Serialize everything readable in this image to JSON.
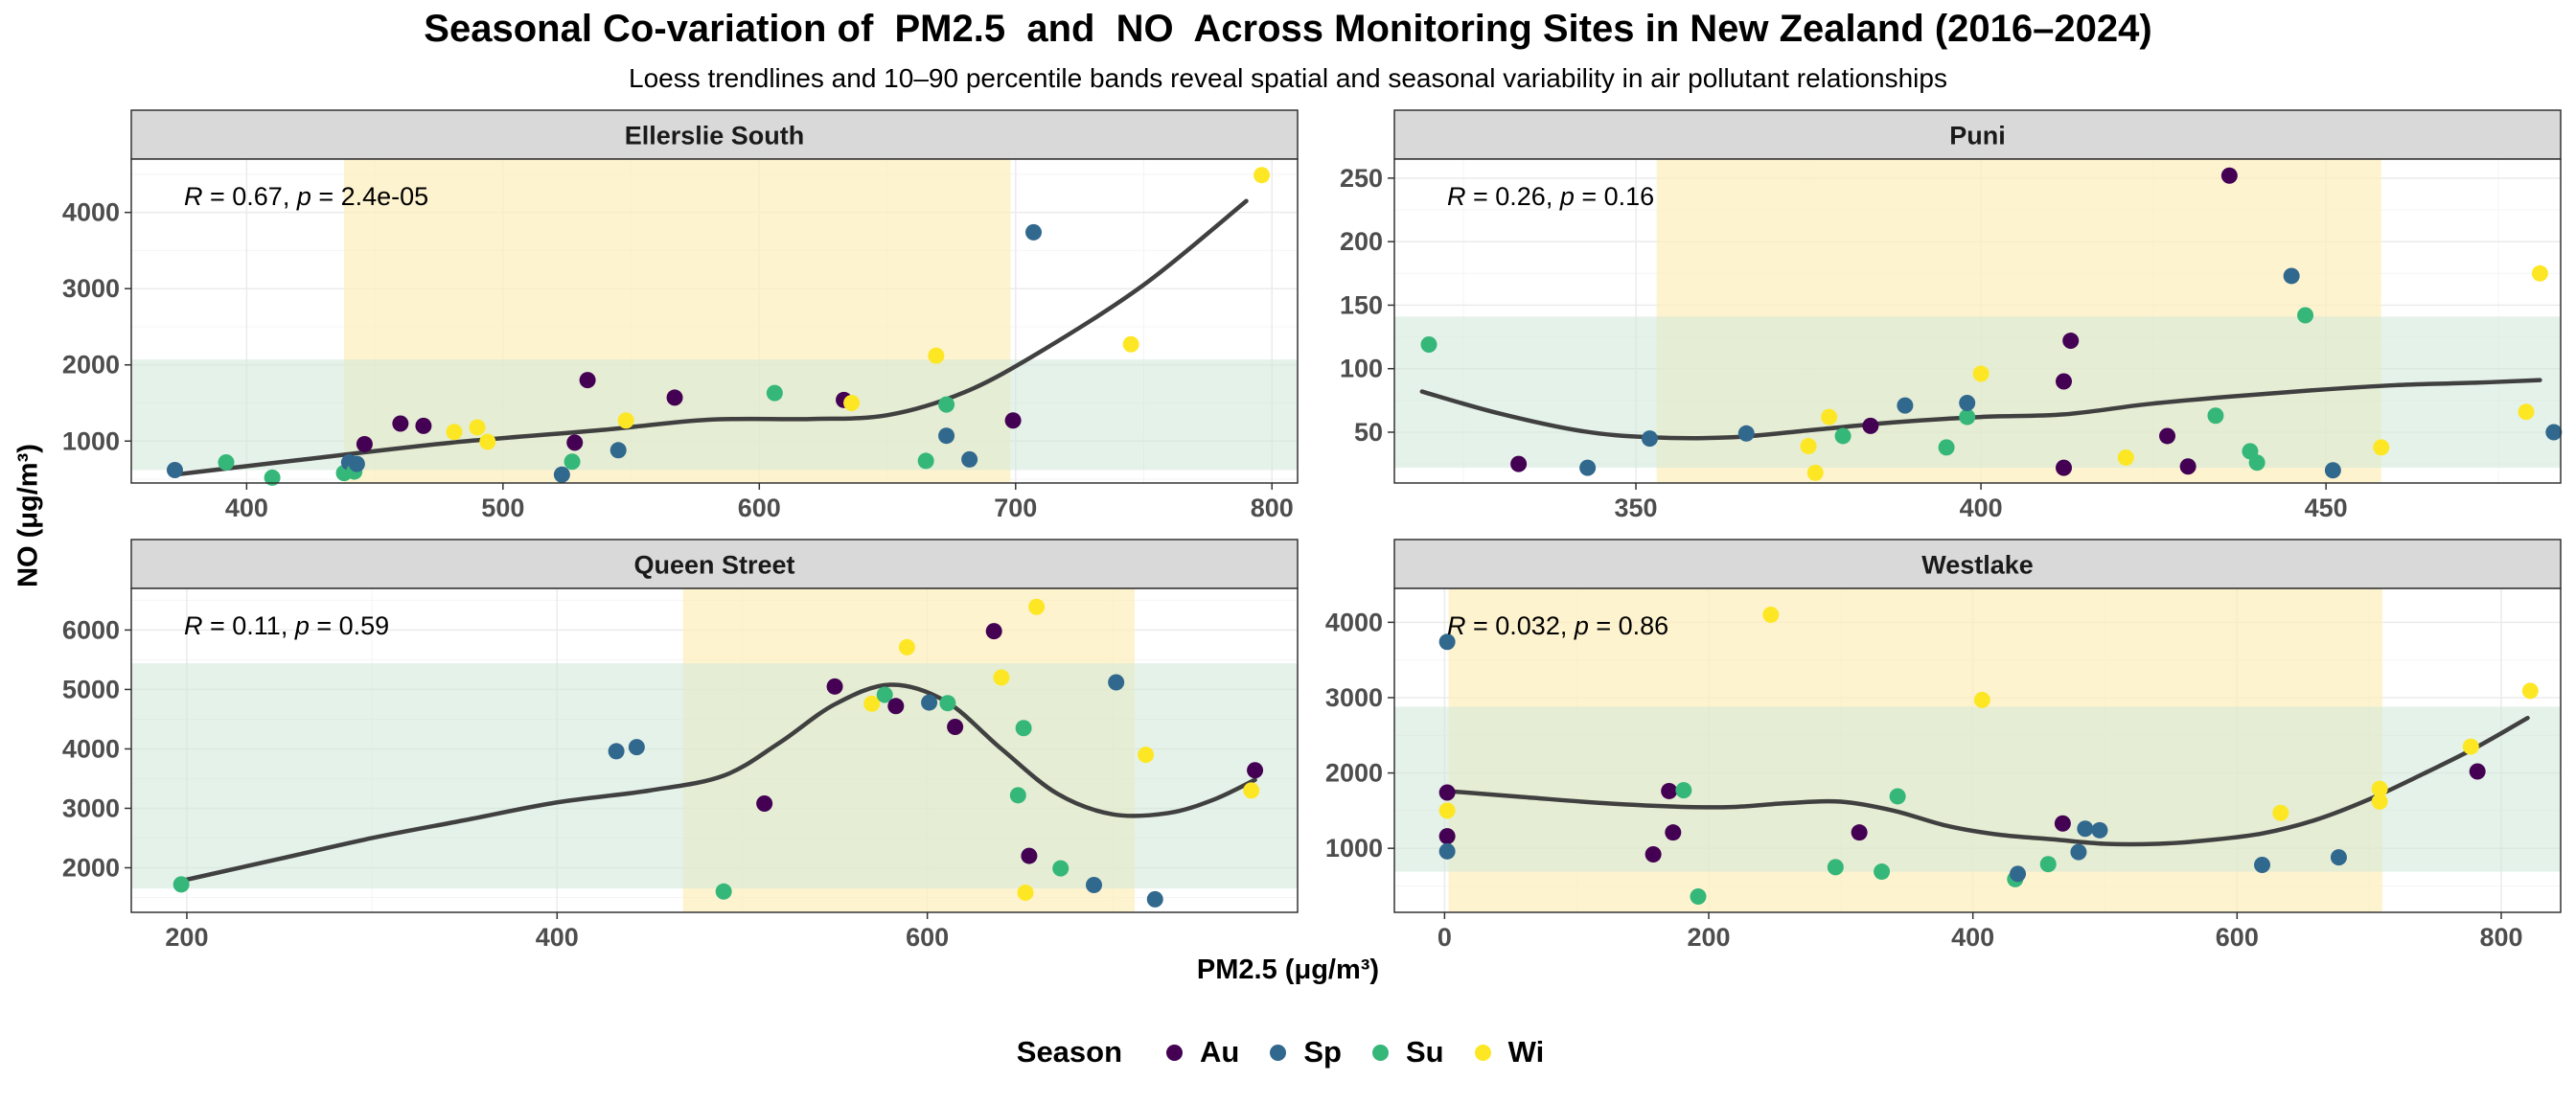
{
  "title": "Seasonal Co-variation of  PM2.5  and  NO  Across Monitoring Sites in New Zealand (2016–2024)",
  "subtitle": "Loess trendlines and 10–90 percentile bands reveal spatial and seasonal variability in air pollutant relationships",
  "xlabel": "PM2.5 (μg/m³)",
  "ylabel": "NO (μg/m³)",
  "legend": {
    "title": "Season",
    "items": [
      {
        "key": "Au",
        "label": "Au",
        "color": "#440154"
      },
      {
        "key": "Sp",
        "label": "Sp",
        "color": "#31688e"
      },
      {
        "key": "Su",
        "label": "Su",
        "color": "#35b779"
      },
      {
        "key": "Wi",
        "label": "Wi",
        "color": "#fde725"
      }
    ]
  },
  "colors": {
    "x_band": "#fdeebd",
    "y_band": "#cfe7d8",
    "trend": "#404040",
    "strip": "#d9d9d9",
    "grid": "#ebebeb"
  },
  "chart_data": [
    {
      "type": "scatter",
      "panel": "Ellerslie South",
      "stat": {
        "R": "0.67",
        "p": "2.4e-05"
      },
      "xlim": [
        355,
        810
      ],
      "ylim": [
        450,
        4700
      ],
      "xticks": [
        400,
        500,
        600,
        700,
        800
      ],
      "yticks": [
        1000,
        2000,
        3000,
        4000
      ],
      "x_band": [
        438,
        698
      ],
      "y_band": [
        620,
        2070
      ],
      "points": [
        {
          "x": 372,
          "y": 620,
          "s": "Sp"
        },
        {
          "x": 392,
          "y": 720,
          "s": "Su"
        },
        {
          "x": 410,
          "y": 520,
          "s": "Su"
        },
        {
          "x": 438,
          "y": 580,
          "s": "Su"
        },
        {
          "x": 440,
          "y": 720,
          "s": "Sp"
        },
        {
          "x": 442,
          "y": 600,
          "s": "Su"
        },
        {
          "x": 443,
          "y": 700,
          "s": "Sp"
        },
        {
          "x": 446,
          "y": 960,
          "s": "Au"
        },
        {
          "x": 460,
          "y": 1230,
          "s": "Au"
        },
        {
          "x": 469,
          "y": 1200,
          "s": "Au"
        },
        {
          "x": 481,
          "y": 1120,
          "s": "Wi"
        },
        {
          "x": 490,
          "y": 1180,
          "s": "Wi"
        },
        {
          "x": 494,
          "y": 990,
          "s": "Wi"
        },
        {
          "x": 523,
          "y": 560,
          "s": "Sp"
        },
        {
          "x": 527,
          "y": 730,
          "s": "Su"
        },
        {
          "x": 528,
          "y": 980,
          "s": "Au"
        },
        {
          "x": 533,
          "y": 1800,
          "s": "Au"
        },
        {
          "x": 545,
          "y": 880,
          "s": "Sp"
        },
        {
          "x": 548,
          "y": 1270,
          "s": "Wi"
        },
        {
          "x": 567,
          "y": 1570,
          "s": "Au"
        },
        {
          "x": 606,
          "y": 1630,
          "s": "Su"
        },
        {
          "x": 633,
          "y": 1540,
          "s": "Au"
        },
        {
          "x": 636,
          "y": 1500,
          "s": "Wi"
        },
        {
          "x": 665,
          "y": 740,
          "s": "Su"
        },
        {
          "x": 669,
          "y": 2120,
          "s": "Wi"
        },
        {
          "x": 673,
          "y": 1480,
          "s": "Su"
        },
        {
          "x": 673,
          "y": 1070,
          "s": "Sp"
        },
        {
          "x": 682,
          "y": 760,
          "s": "Sp"
        },
        {
          "x": 699,
          "y": 1270,
          "s": "Au"
        },
        {
          "x": 707,
          "y": 3740,
          "s": "Sp"
        },
        {
          "x": 745,
          "y": 2270,
          "s": "Wi"
        },
        {
          "x": 796,
          "y": 4490,
          "s": "Wi"
        }
      ],
      "trend": [
        [
          372,
          560
        ],
        [
          420,
          750
        ],
        [
          480,
          980
        ],
        [
          540,
          1150
        ],
        [
          580,
          1280
        ],
        [
          620,
          1290
        ],
        [
          650,
          1340
        ],
        [
          680,
          1640
        ],
        [
          710,
          2180
        ],
        [
          750,
          3050
        ],
        [
          790,
          4150
        ]
      ]
    },
    {
      "type": "scatter",
      "panel": "Puni",
      "stat": {
        "R": "0.26",
        "p": "0.16"
      },
      "xlim": [
        315,
        484
      ],
      "ylim": [
        10,
        265
      ],
      "xticks": [
        350,
        400,
        450
      ],
      "yticks": [
        50,
        100,
        150,
        200,
        250
      ],
      "x_band": [
        353,
        458
      ],
      "y_band": [
        22,
        141
      ],
      "points": [
        {
          "x": 320,
          "y": 119,
          "s": "Su"
        },
        {
          "x": 333,
          "y": 25,
          "s": "Au"
        },
        {
          "x": 343,
          "y": 22,
          "s": "Sp"
        },
        {
          "x": 352,
          "y": 45,
          "s": "Sp"
        },
        {
          "x": 366,
          "y": 49,
          "s": "Sp"
        },
        {
          "x": 375,
          "y": 39,
          "s": "Wi"
        },
        {
          "x": 376,
          "y": 18,
          "s": "Wi"
        },
        {
          "x": 378,
          "y": 62,
          "s": "Wi"
        },
        {
          "x": 380,
          "y": 47,
          "s": "Su"
        },
        {
          "x": 384,
          "y": 55,
          "s": "Au"
        },
        {
          "x": 389,
          "y": 71,
          "s": "Sp"
        },
        {
          "x": 395,
          "y": 38,
          "s": "Su"
        },
        {
          "x": 398,
          "y": 62,
          "s": "Su"
        },
        {
          "x": 398,
          "y": 73,
          "s": "Sp"
        },
        {
          "x": 400,
          "y": 96,
          "s": "Wi"
        },
        {
          "x": 412,
          "y": 90,
          "s": "Au"
        },
        {
          "x": 413,
          "y": 122,
          "s": "Au"
        },
        {
          "x": 412,
          "y": 22,
          "s": "Au"
        },
        {
          "x": 421,
          "y": 30,
          "s": "Wi"
        },
        {
          "x": 427,
          "y": 47,
          "s": "Au"
        },
        {
          "x": 430,
          "y": 23,
          "s": "Au"
        },
        {
          "x": 434,
          "y": 63,
          "s": "Su"
        },
        {
          "x": 436,
          "y": 252,
          "s": "Au"
        },
        {
          "x": 439,
          "y": 35,
          "s": "Su"
        },
        {
          "x": 440,
          "y": 26,
          "s": "Su"
        },
        {
          "x": 445,
          "y": 173,
          "s": "Sp"
        },
        {
          "x": 447,
          "y": 142,
          "s": "Su"
        },
        {
          "x": 451,
          "y": 20,
          "s": "Sp"
        },
        {
          "x": 458,
          "y": 38,
          "s": "Wi"
        },
        {
          "x": 479,
          "y": 66,
          "s": "Wi"
        },
        {
          "x": 481,
          "y": 175,
          "s": "Wi"
        },
        {
          "x": 483,
          "y": 50,
          "s": "Sp"
        }
      ],
      "trend": [
        [
          319,
          82
        ],
        [
          330,
          65
        ],
        [
          342,
          51
        ],
        [
          352,
          46
        ],
        [
          364,
          46
        ],
        [
          376,
          52
        ],
        [
          388,
          58
        ],
        [
          400,
          62
        ],
        [
          412,
          64
        ],
        [
          424,
          72
        ],
        [
          436,
          78
        ],
        [
          448,
          83
        ],
        [
          460,
          87
        ],
        [
          472,
          89
        ],
        [
          481,
          91
        ]
      ]
    },
    {
      "type": "scatter",
      "panel": "Queen Street",
      "stat": {
        "R": "0.11",
        "p": "0.59"
      },
      "xlim": [
        170,
        800
      ],
      "ylim": [
        1250,
        6700
      ],
      "xticks": [
        200,
        400,
        600
      ],
      "yticks": [
        2000,
        3000,
        4000,
        5000,
        6000
      ],
      "x_band": [
        468,
        712
      ],
      "y_band": [
        1650,
        5440
      ],
      "points": [
        {
          "x": 197,
          "y": 1720,
          "s": "Su"
        },
        {
          "x": 432,
          "y": 3960,
          "s": "Sp"
        },
        {
          "x": 443,
          "y": 4030,
          "s": "Sp"
        },
        {
          "x": 490,
          "y": 1600,
          "s": "Su"
        },
        {
          "x": 512,
          "y": 3080,
          "s": "Au"
        },
        {
          "x": 550,
          "y": 5050,
          "s": "Au"
        },
        {
          "x": 570,
          "y": 4760,
          "s": "Wi"
        },
        {
          "x": 577,
          "y": 4910,
          "s": "Su"
        },
        {
          "x": 583,
          "y": 4720,
          "s": "Au"
        },
        {
          "x": 589,
          "y": 5710,
          "s": "Wi"
        },
        {
          "x": 601,
          "y": 4780,
          "s": "Sp"
        },
        {
          "x": 611,
          "y": 4770,
          "s": "Su"
        },
        {
          "x": 615,
          "y": 4370,
          "s": "Au"
        },
        {
          "x": 636,
          "y": 5980,
          "s": "Au"
        },
        {
          "x": 640,
          "y": 5200,
          "s": "Wi"
        },
        {
          "x": 649,
          "y": 3220,
          "s": "Su"
        },
        {
          "x": 652,
          "y": 4350,
          "s": "Su"
        },
        {
          "x": 653,
          "y": 1580,
          "s": "Wi"
        },
        {
          "x": 655,
          "y": 2200,
          "s": "Au"
        },
        {
          "x": 659,
          "y": 6390,
          "s": "Wi"
        },
        {
          "x": 672,
          "y": 1990,
          "s": "Su"
        },
        {
          "x": 690,
          "y": 1710,
          "s": "Sp"
        },
        {
          "x": 702,
          "y": 5120,
          "s": "Sp"
        },
        {
          "x": 718,
          "y": 3900,
          "s": "Wi"
        },
        {
          "x": 723,
          "y": 1470,
          "s": "Sp"
        },
        {
          "x": 775,
          "y": 3300,
          "s": "Wi"
        },
        {
          "x": 777,
          "y": 3640,
          "s": "Au"
        }
      ],
      "trend": [
        [
          197,
          1780
        ],
        [
          250,
          2150
        ],
        [
          300,
          2500
        ],
        [
          350,
          2800
        ],
        [
          400,
          3100
        ],
        [
          450,
          3300
        ],
        [
          490,
          3550
        ],
        [
          520,
          4100
        ],
        [
          550,
          4750
        ],
        [
          580,
          5080
        ],
        [
          610,
          4800
        ],
        [
          640,
          4000
        ],
        [
          670,
          3250
        ],
        [
          700,
          2900
        ],
        [
          730,
          2920
        ],
        [
          755,
          3150
        ],
        [
          777,
          3480
        ]
      ]
    },
    {
      "type": "scatter",
      "panel": "Westlake",
      "stat": {
        "R": "0.032",
        "p": "0.86"
      },
      "xlim": [
        -38,
        845
      ],
      "ylim": [
        150,
        4450
      ],
      "xticks": [
        0,
        200,
        400,
        600,
        800
      ],
      "yticks": [
        1000,
        2000,
        3000,
        4000
      ],
      "x_band": [
        3,
        710
      ],
      "y_band": [
        690,
        2880
      ],
      "points": [
        {
          "x": 2,
          "y": 3740,
          "s": "Sp"
        },
        {
          "x": 2,
          "y": 1740,
          "s": "Au"
        },
        {
          "x": 2,
          "y": 1500,
          "s": "Wi"
        },
        {
          "x": 2,
          "y": 1160,
          "s": "Au"
        },
        {
          "x": 2,
          "y": 960,
          "s": "Sp"
        },
        {
          "x": 158,
          "y": 920,
          "s": "Au"
        },
        {
          "x": 170,
          "y": 1760,
          "s": "Au"
        },
        {
          "x": 173,
          "y": 1210,
          "s": "Au"
        },
        {
          "x": 181,
          "y": 1770,
          "s": "Su"
        },
        {
          "x": 192,
          "y": 360,
          "s": "Su"
        },
        {
          "x": 247,
          "y": 4100,
          "s": "Wi"
        },
        {
          "x": 296,
          "y": 750,
          "s": "Su"
        },
        {
          "x": 314,
          "y": 1210,
          "s": "Au"
        },
        {
          "x": 331,
          "y": 690,
          "s": "Su"
        },
        {
          "x": 343,
          "y": 1690,
          "s": "Su"
        },
        {
          "x": 407,
          "y": 2970,
          "s": "Wi"
        },
        {
          "x": 432,
          "y": 590,
          "s": "Su"
        },
        {
          "x": 434,
          "y": 660,
          "s": "Sp"
        },
        {
          "x": 457,
          "y": 790,
          "s": "Su"
        },
        {
          "x": 468,
          "y": 1330,
          "s": "Au"
        },
        {
          "x": 480,
          "y": 950,
          "s": "Sp"
        },
        {
          "x": 485,
          "y": 1260,
          "s": "Sp"
        },
        {
          "x": 496,
          "y": 1240,
          "s": "Sp"
        },
        {
          "x": 619,
          "y": 780,
          "s": "Sp"
        },
        {
          "x": 633,
          "y": 1470,
          "s": "Wi"
        },
        {
          "x": 677,
          "y": 880,
          "s": "Sp"
        },
        {
          "x": 708,
          "y": 1790,
          "s": "Wi"
        },
        {
          "x": 708,
          "y": 1620,
          "s": "Wi"
        },
        {
          "x": 777,
          "y": 2350,
          "s": "Wi"
        },
        {
          "x": 782,
          "y": 2020,
          "s": "Au"
        },
        {
          "x": 822,
          "y": 3090,
          "s": "Wi"
        }
      ],
      "trend": [
        [
          2,
          1760
        ],
        [
          60,
          1680
        ],
        [
          120,
          1600
        ],
        [
          180,
          1550
        ],
        [
          220,
          1550
        ],
        [
          260,
          1600
        ],
        [
          300,
          1620
        ],
        [
          340,
          1500
        ],
        [
          380,
          1300
        ],
        [
          420,
          1180
        ],
        [
          460,
          1120
        ],
        [
          500,
          1060
        ],
        [
          540,
          1060
        ],
        [
          580,
          1110
        ],
        [
          620,
          1200
        ],
        [
          660,
          1380
        ],
        [
          700,
          1650
        ],
        [
          740,
          1980
        ],
        [
          780,
          2330
        ],
        [
          820,
          2730
        ]
      ]
    }
  ]
}
